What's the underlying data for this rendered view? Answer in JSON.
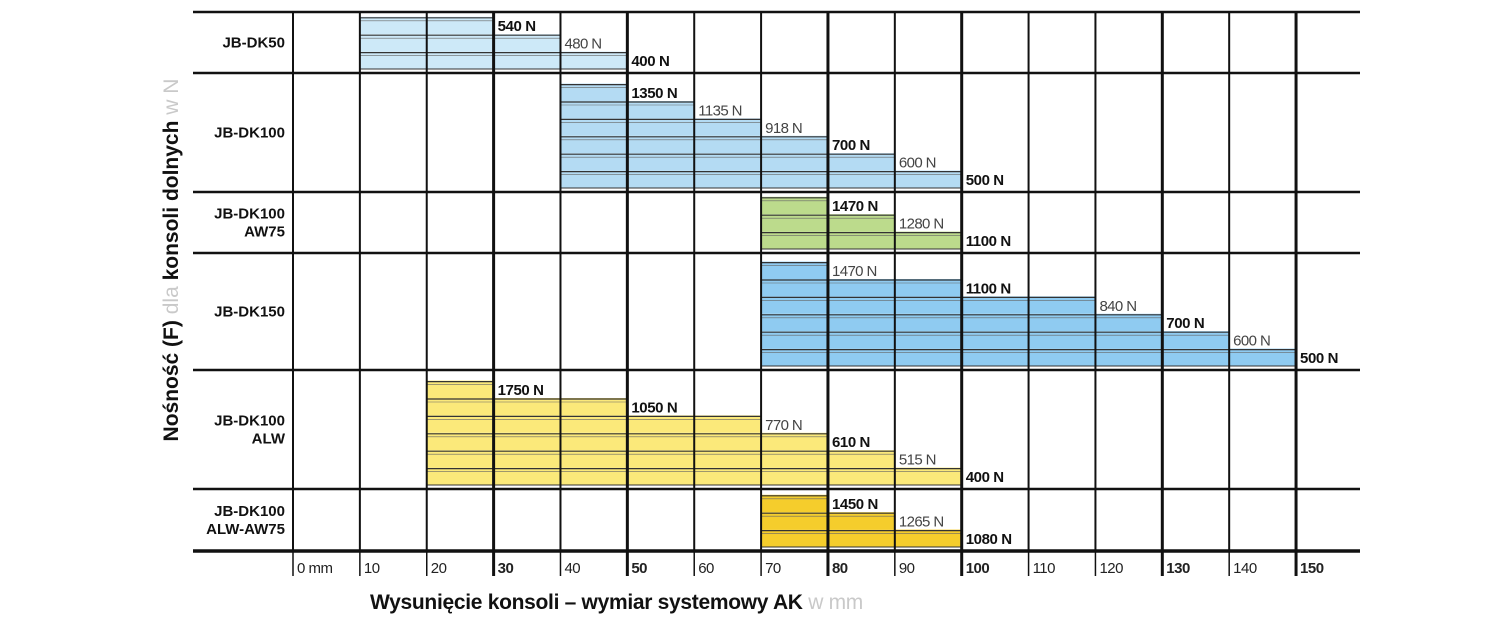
{
  "chart_data": {
    "type": "bar",
    "subtype": "stepped horizontal load-capacity chart",
    "ylabel": {
      "part1": "Nośność (F)",
      "part2": "dla",
      "part3": "konsoli dolnych",
      "part4": "w N"
    },
    "xlabel": {
      "main": "Wysunięcie konsoli – wymiar systemowy AK",
      "unit": "w mm"
    },
    "xlim": [
      0,
      150
    ],
    "x_ticks": [
      {
        "value": 0,
        "label": "0 mm",
        "bold": false
      },
      {
        "value": 10,
        "label": "10",
        "bold": false
      },
      {
        "value": 20,
        "label": "20",
        "bold": false
      },
      {
        "value": 30,
        "label": "30",
        "bold": true
      },
      {
        "value": 40,
        "label": "40",
        "bold": false
      },
      {
        "value": 50,
        "label": "50",
        "bold": true
      },
      {
        "value": 60,
        "label": "60",
        "bold": false
      },
      {
        "value": 70,
        "label": "70",
        "bold": false
      },
      {
        "value": 80,
        "label": "80",
        "bold": true
      },
      {
        "value": 90,
        "label": "90",
        "bold": false
      },
      {
        "value": 100,
        "label": "100",
        "bold": true
      },
      {
        "value": 110,
        "label": "110",
        "bold": false
      },
      {
        "value": 120,
        "label": "120",
        "bold": false
      },
      {
        "value": 130,
        "label": "130",
        "bold": true
      },
      {
        "value": 140,
        "label": "140",
        "bold": false
      },
      {
        "value": 150,
        "label": "150",
        "bold": true
      }
    ],
    "series": [
      {
        "name": [
          "JB-DK50"
        ],
        "color": "#cde9f8",
        "start": 10,
        "points": [
          {
            "x": 30,
            "value": 540,
            "label": "540 N",
            "bold": true
          },
          {
            "x": 40,
            "value": 480,
            "label": "480 N",
            "bold": false
          },
          {
            "x": 50,
            "value": 400,
            "label": "400 N",
            "bold": true
          }
        ]
      },
      {
        "name": [
          "JB-DK100"
        ],
        "color": "#b4dbf3",
        "start": 40,
        "points": [
          {
            "x": 50,
            "value": 1350,
            "label": "1350 N",
            "bold": true
          },
          {
            "x": 60,
            "value": 1135,
            "label": "1135 N",
            "bold": false
          },
          {
            "x": 70,
            "value": 918,
            "label": "918 N",
            "bold": false
          },
          {
            "x": 80,
            "value": 700,
            "label": "700 N",
            "bold": true
          },
          {
            "x": 90,
            "value": 600,
            "label": "600 N",
            "bold": false
          },
          {
            "x": 100,
            "value": 500,
            "label": "500 N",
            "bold": true
          }
        ]
      },
      {
        "name": [
          "JB-DK100",
          "AW75"
        ],
        "color": "#bcdb8c",
        "start": 70,
        "points": [
          {
            "x": 80,
            "value": 1470,
            "label": "1470 N",
            "bold": true
          },
          {
            "x": 90,
            "value": 1280,
            "label": "1280 N",
            "bold": false
          },
          {
            "x": 100,
            "value": 1100,
            "label": "1100 N",
            "bold": true
          }
        ]
      },
      {
        "name": [
          "JB-DK150"
        ],
        "color": "#8fcbf1",
        "start": 70,
        "points": [
          {
            "x": 80,
            "value": 1470,
            "label": "1470 N",
            "bold": false
          },
          {
            "x": 100,
            "value": 1100,
            "label": "1100 N",
            "bold": true
          },
          {
            "x": 120,
            "value": 840,
            "label": "840 N",
            "bold": false
          },
          {
            "x": 130,
            "value": 700,
            "label": "700 N",
            "bold": true
          },
          {
            "x": 140,
            "value": 600,
            "label": "600 N",
            "bold": false
          },
          {
            "x": 150,
            "value": 500,
            "label": "500 N",
            "bold": true
          }
        ]
      },
      {
        "name": [
          "JB-DK100",
          "ALW"
        ],
        "color": "#fbe97a",
        "start": 20,
        "points": [
          {
            "x": 30,
            "value": 1750,
            "label": "1750 N",
            "bold": true
          },
          {
            "x": 50,
            "value": 1050,
            "label": "1050 N",
            "bold": true
          },
          {
            "x": 70,
            "value": 770,
            "label": "770 N",
            "bold": false
          },
          {
            "x": 80,
            "value": 610,
            "label": "610 N",
            "bold": true
          },
          {
            "x": 90,
            "value": 515,
            "label": "515 N",
            "bold": false
          },
          {
            "x": 100,
            "value": 400,
            "label": "400 N",
            "bold": true
          }
        ]
      },
      {
        "name": [
          "JB-DK100",
          "ALW-AW75"
        ],
        "color": "#f5cd2c",
        "start": 70,
        "points": [
          {
            "x": 80,
            "value": 1450,
            "label": "1450 N",
            "bold": true
          },
          {
            "x": 90,
            "value": 1265,
            "label": "1265 N",
            "bold": false
          },
          {
            "x": 100,
            "value": 1080,
            "label": "1080 N",
            "bold": true
          }
        ]
      }
    ]
  }
}
